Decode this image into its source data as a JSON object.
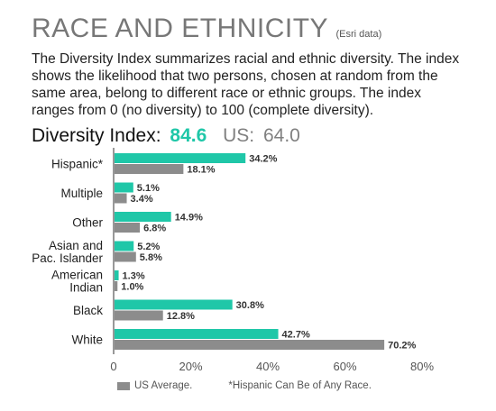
{
  "header": {
    "title": "RACE AND ETHNICITY",
    "note": "(Esri data)",
    "description": "The Diversity Index summarizes racial and ethnic diversity. The index shows the likelihood that two persons, chosen at random from the same area, belong to different race or ethnic groups. The index ranges from 0 (no diversity) to 100 (complete diversity)."
  },
  "index": {
    "label": "Diversity Index:",
    "value": "84.6",
    "us_label": "US:",
    "us_value": "64.0"
  },
  "legend": {
    "us_label": "US Average.",
    "note": "*Hispanic Can Be of Any Race."
  },
  "chart_data": {
    "type": "bar",
    "orientation": "horizontal",
    "categories": [
      [
        "Hispanic*"
      ],
      [
        "Multiple"
      ],
      [
        "Other"
      ],
      [
        "Asian and",
        "Pac. Islander"
      ],
      [
        "American",
        "Indian"
      ],
      [
        "Black"
      ],
      [
        "White"
      ]
    ],
    "series": [
      {
        "values": [
          34.2,
          5.1,
          14.9,
          5.2,
          1.3,
          30.8,
          42.7
        ],
        "labels": [
          "34.2%",
          "5.1%",
          "14.9%",
          "5.2%",
          "1.3%",
          "30.8%",
          "42.7%"
        ],
        "color": "#1fc7a8"
      },
      {
        "name": "US Average.",
        "values": [
          18.1,
          3.4,
          6.8,
          5.8,
          1.0,
          12.8,
          70.2
        ],
        "labels": [
          "18.1%",
          "3.4%",
          "6.8%",
          "5.8%",
          "1.0%",
          "12.8%",
          "70.2%"
        ],
        "color": "#8c8c8c"
      }
    ],
    "xlim": [
      0,
      80
    ],
    "ticks": [
      0,
      20,
      40,
      60,
      80
    ],
    "tick_labels": [
      "0",
      "20%",
      "40%",
      "60%",
      "80%"
    ],
    "grid": false
  }
}
